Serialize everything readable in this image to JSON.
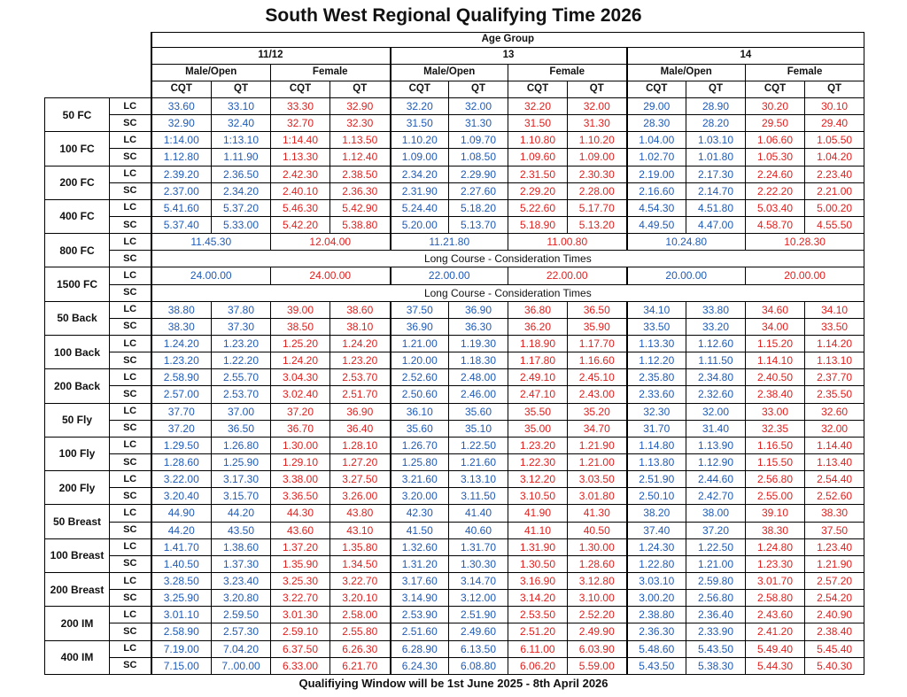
{
  "title": "South West Regional Qualifying Time 2026",
  "header": {
    "age_group": "Age Group",
    "ages": [
      "11/12",
      "13",
      "14"
    ],
    "genders": [
      "Male/Open",
      "Female"
    ],
    "standards": [
      "CQT",
      "QT"
    ]
  },
  "events": [
    {
      "name": "50 FC",
      "rows": [
        {
          "course": "LC",
          "times": [
            "33.60",
            "33.10",
            "33.30",
            "32.90",
            "32.20",
            "32.00",
            "32.20",
            "32.00",
            "29.00",
            "28.90",
            "30.20",
            "30.10"
          ]
        },
        {
          "course": "SC",
          "times": [
            "32.90",
            "32.40",
            "32.70",
            "32.30",
            "31.50",
            "31.30",
            "31.50",
            "31.30",
            "28.30",
            "28.20",
            "29.50",
            "29.40"
          ]
        }
      ]
    },
    {
      "name": "100 FC",
      "rows": [
        {
          "course": "LC",
          "times": [
            "1:14.00",
            "1:13.10",
            "1:14.40",
            "1.13.50",
            "1.10.20",
            "1.09.70",
            "1.10.80",
            "1.10.20",
            "1.04.00",
            "1.03.10",
            "1.06.60",
            "1.05.50"
          ]
        },
        {
          "course": "SC",
          "times": [
            "1.12.80",
            "1.11.90",
            "1.13.30",
            "1.12.40",
            "1.09.00",
            "1.08.50",
            "1.09.60",
            "1.09.00",
            "1.02.70",
            "1.01.80",
            "1.05.30",
            "1.04.20"
          ]
        }
      ]
    },
    {
      "name": "200 FC",
      "rows": [
        {
          "course": "LC",
          "times": [
            "2.39.20",
            "2.36.50",
            "2.42.30",
            "2.38.50",
            "2.34.20",
            "2.29.90",
            "2.31.50",
            "2.30.30",
            "2.19.00",
            "2.17.30",
            "2.24.60",
            "2.23.40"
          ]
        },
        {
          "course": "SC",
          "times": [
            "2.37.00",
            "2.34.20",
            "2.40.10",
            "2.36.30",
            "2.31.90",
            "2.27.60",
            "2.29.20",
            "2.28.00",
            "2.16.60",
            "2.14.70",
            "2.22.20",
            "2.21.00"
          ]
        }
      ]
    },
    {
      "name": "400 FC",
      "rows": [
        {
          "course": "LC",
          "times": [
            "5.41.60",
            "5.37.20",
            "5.46.30",
            "5.42.90",
            "5.24.40",
            "5.18.20",
            "5.22.60",
            "5.17.70",
            "4.54.30",
            "4.51.80",
            "5.03.40",
            "5.00.20"
          ]
        },
        {
          "course": "SC",
          "times": [
            "5.37.40",
            "5.33.00",
            "5.42.20",
            "5.38.80",
            "5.20.00",
            "5.13.70",
            "5.18.90",
            "5.13.20",
            "4.49.50",
            "4.47.00",
            "4.58.70",
            "4.55.50"
          ]
        }
      ]
    },
    {
      "name": "800 FC",
      "rows": [
        {
          "course": "LC",
          "times": [
            "11.45.30",
            "12.04.00",
            "11.21.80",
            "11.00.80",
            "10.24.80",
            "10.28.30"
          ]
        },
        {
          "course": "SC",
          "note": "Long Course - Consideration Times"
        }
      ]
    },
    {
      "name": "1500 FC",
      "rows": [
        {
          "course": "LC",
          "times": [
            "24.00.00",
            "24.00.00",
            "22.00.00",
            "22.00.00",
            "20.00.00",
            "20.00.00"
          ]
        },
        {
          "course": "SC",
          "note": "Long Course - Consideration Times"
        }
      ]
    },
    {
      "name": "50 Back",
      "rows": [
        {
          "course": "LC",
          "times": [
            "38.80",
            "37.80",
            "39.00",
            "38.60",
            "37.50",
            "36.90",
            "36.80",
            "36.50",
            "34.10",
            "33.80",
            "34.60",
            "34.10"
          ]
        },
        {
          "course": "SC",
          "times": [
            "38.30",
            "37.30",
            "38.50",
            "38.10",
            "36.90",
            "36.30",
            "36.20",
            "35.90",
            "33.50",
            "33.20",
            "34.00",
            "33.50"
          ]
        }
      ]
    },
    {
      "name": "100 Back",
      "rows": [
        {
          "course": "LC",
          "times": [
            "1.24.20",
            "1.23.20",
            "1.25.20",
            "1.24.20",
            "1.21.00",
            "1.19.30",
            "1.18.90",
            "1.17.70",
            "1.13.30",
            "1.12.60",
            "1.15.20",
            "1.14.20"
          ]
        },
        {
          "course": "SC",
          "times": [
            "1.23.20",
            "1.22.20",
            "1.24.20",
            "1.23.20",
            "1.20.00",
            "1.18.30",
            "1.17.80",
            "1.16.60",
            "1.12.20",
            "1.11.50",
            "1.14.10",
            "1.13.10"
          ]
        }
      ]
    },
    {
      "name": "200 Back",
      "rows": [
        {
          "course": "LC",
          "times": [
            "2.58.90",
            "2.55.70",
            "3.04.30",
            "2.53.70",
            "2.52.60",
            "2.48.00",
            "2.49.10",
            "2.45.10",
            "2.35.80",
            "2.34.80",
            "2.40.50",
            "2.37.70"
          ]
        },
        {
          "course": "SC",
          "times": [
            "2.57.00",
            "2.53.70",
            "3.02.40",
            "2.51.70",
            "2.50.60",
            "2.46.00",
            "2.47.10",
            "2.43.00",
            "2.33.60",
            "2.32.60",
            "2.38.40",
            "2.35.50"
          ]
        }
      ]
    },
    {
      "name": "50 Fly",
      "rows": [
        {
          "course": "LC",
          "times": [
            "37.70",
            "37.00",
            "37.20",
            "36.90",
            "36.10",
            "35.60",
            "35.50",
            "35.20",
            "32.30",
            "32.00",
            "33.00",
            "32.60"
          ]
        },
        {
          "course": "SC",
          "times": [
            "37.20",
            "36.50",
            "36.70",
            "36.40",
            "35.60",
            "35.10",
            "35.00",
            "34.70",
            "31.70",
            "31.40",
            "32.35",
            "32.00"
          ]
        }
      ]
    },
    {
      "name": "100 Fly",
      "rows": [
        {
          "course": "LC",
          "times": [
            "1.29.50",
            "1.26.80",
            "1.30.00",
            "1.28.10",
            "1.26.70",
            "1.22.50",
            "1.23.20",
            "1.21.90",
            "1.14.80",
            "1.13.90",
            "1.16.50",
            "1.14.40"
          ]
        },
        {
          "course": "SC",
          "times": [
            "1.28.60",
            "1.25.90",
            "1.29.10",
            "1.27.20",
            "1.25.80",
            "1.21.60",
            "1.22.30",
            "1.21.00",
            "1.13.80",
            "1.12.90",
            "1.15.50",
            "1.13.40"
          ]
        }
      ]
    },
    {
      "name": "200 Fly",
      "rows": [
        {
          "course": "LC",
          "times": [
            "3.22.00",
            "3.17.30",
            "3.38.00",
            "3.27.50",
            "3.21.60",
            "3.13.10",
            "3.12.20",
            "3.03.50",
            "2.51.90",
            "2.44.60",
            "2.56.80",
            "2.54.40"
          ]
        },
        {
          "course": "SC",
          "times": [
            "3.20.40",
            "3.15.70",
            "3.36.50",
            "3.26.00",
            "3.20.00",
            "3.11.50",
            "3.10.50",
            "3.01.80",
            "2.50.10",
            "2.42.70",
            "2.55.00",
            "2.52.60"
          ]
        }
      ]
    },
    {
      "name": "50 Breast",
      "rows": [
        {
          "course": "LC",
          "times": [
            "44.90",
            "44.20",
            "44.30",
            "43.80",
            "42.30",
            "41.40",
            "41.90",
            "41.30",
            "38.20",
            "38.00",
            "39.10",
            "38.30"
          ]
        },
        {
          "course": "SC",
          "times": [
            "44.20",
            "43.50",
            "43.60",
            "43.10",
            "41.50",
            "40.60",
            "41.10",
            "40.50",
            "37.40",
            "37.20",
            "38.30",
            "37.50"
          ]
        }
      ]
    },
    {
      "name": "100 Breast",
      "rows": [
        {
          "course": "LC",
          "times": [
            "1.41.70",
            "1.38.60",
            "1.37.20",
            "1.35.80",
            "1.32.60",
            "1.31.70",
            "1.31.90",
            "1.30.00",
            "1.24.30",
            "1.22.50",
            "1.24.80",
            "1.23.40"
          ]
        },
        {
          "course": "SC",
          "times": [
            "1.40.50",
            "1.37.30",
            "1.35.90",
            "1.34.50",
            "1.31.20",
            "1.30.30",
            "1.30.50",
            "1.28.60",
            "1.22.80",
            "1.21.00",
            "1.23.30",
            "1.21.90"
          ]
        }
      ]
    },
    {
      "name": "200 Breast",
      "rows": [
        {
          "course": "LC",
          "times": [
            "3.28.50",
            "3.23.40",
            "3.25.30",
            "3.22.70",
            "3.17.60",
            "3.14.70",
            "3.16.90",
            "3.12.80",
            "3.03.10",
            "2.59.80",
            "3.01.70",
            "2.57.20"
          ]
        },
        {
          "course": "SC",
          "times": [
            "3.25.90",
            "3.20.80",
            "3.22.70",
            "3.20.10",
            "3.14.90",
            "3.12.00",
            "3.14.20",
            "3.10.00",
            "3.00.20",
            "2.56.80",
            "2.58.80",
            "2.54.20"
          ]
        }
      ]
    },
    {
      "name": "200 IM",
      "rows": [
        {
          "course": "LC",
          "times": [
            "3.01.10",
            "2.59.50",
            "3.01.30",
            "2.58.00",
            "2.53.90",
            "2.51.90",
            "2.53.50",
            "2.52.20",
            "2.38.80",
            "2.36.40",
            "2.43.60",
            "2.40.90"
          ]
        },
        {
          "course": "SC",
          "times": [
            "2.58.90",
            "2.57.30",
            "2.59.10",
            "2.55.80",
            "2.51.60",
            "2.49.60",
            "2.51.20",
            "2.49.90",
            "2.36.30",
            "2.33.90",
            "2.41.20",
            "2.38.40"
          ]
        }
      ]
    },
    {
      "name": "400 IM",
      "rows": [
        {
          "course": "LC",
          "times": [
            "7.19.00",
            "7.04.20",
            "6.37.50",
            "6.26.30",
            "6.28.90",
            "6.13.50",
            "6.11.00",
            "6.03.90",
            "5.48.60",
            "5.43.50",
            "5.49.40",
            "5.45.40"
          ]
        },
        {
          "course": "SC",
          "times": [
            "7.15.00",
            "7..00.00",
            "6.33.00",
            "6.21.70",
            "6.24.30",
            "6.08.80",
            "6.06.20",
            "5.59.00",
            "5.43.50",
            "5.38.30",
            "5.44.30",
            "5.40.30"
          ]
        }
      ]
    }
  ],
  "footer": "Qualifiying Window will be 1st June 2025 - 8th April 2026"
}
